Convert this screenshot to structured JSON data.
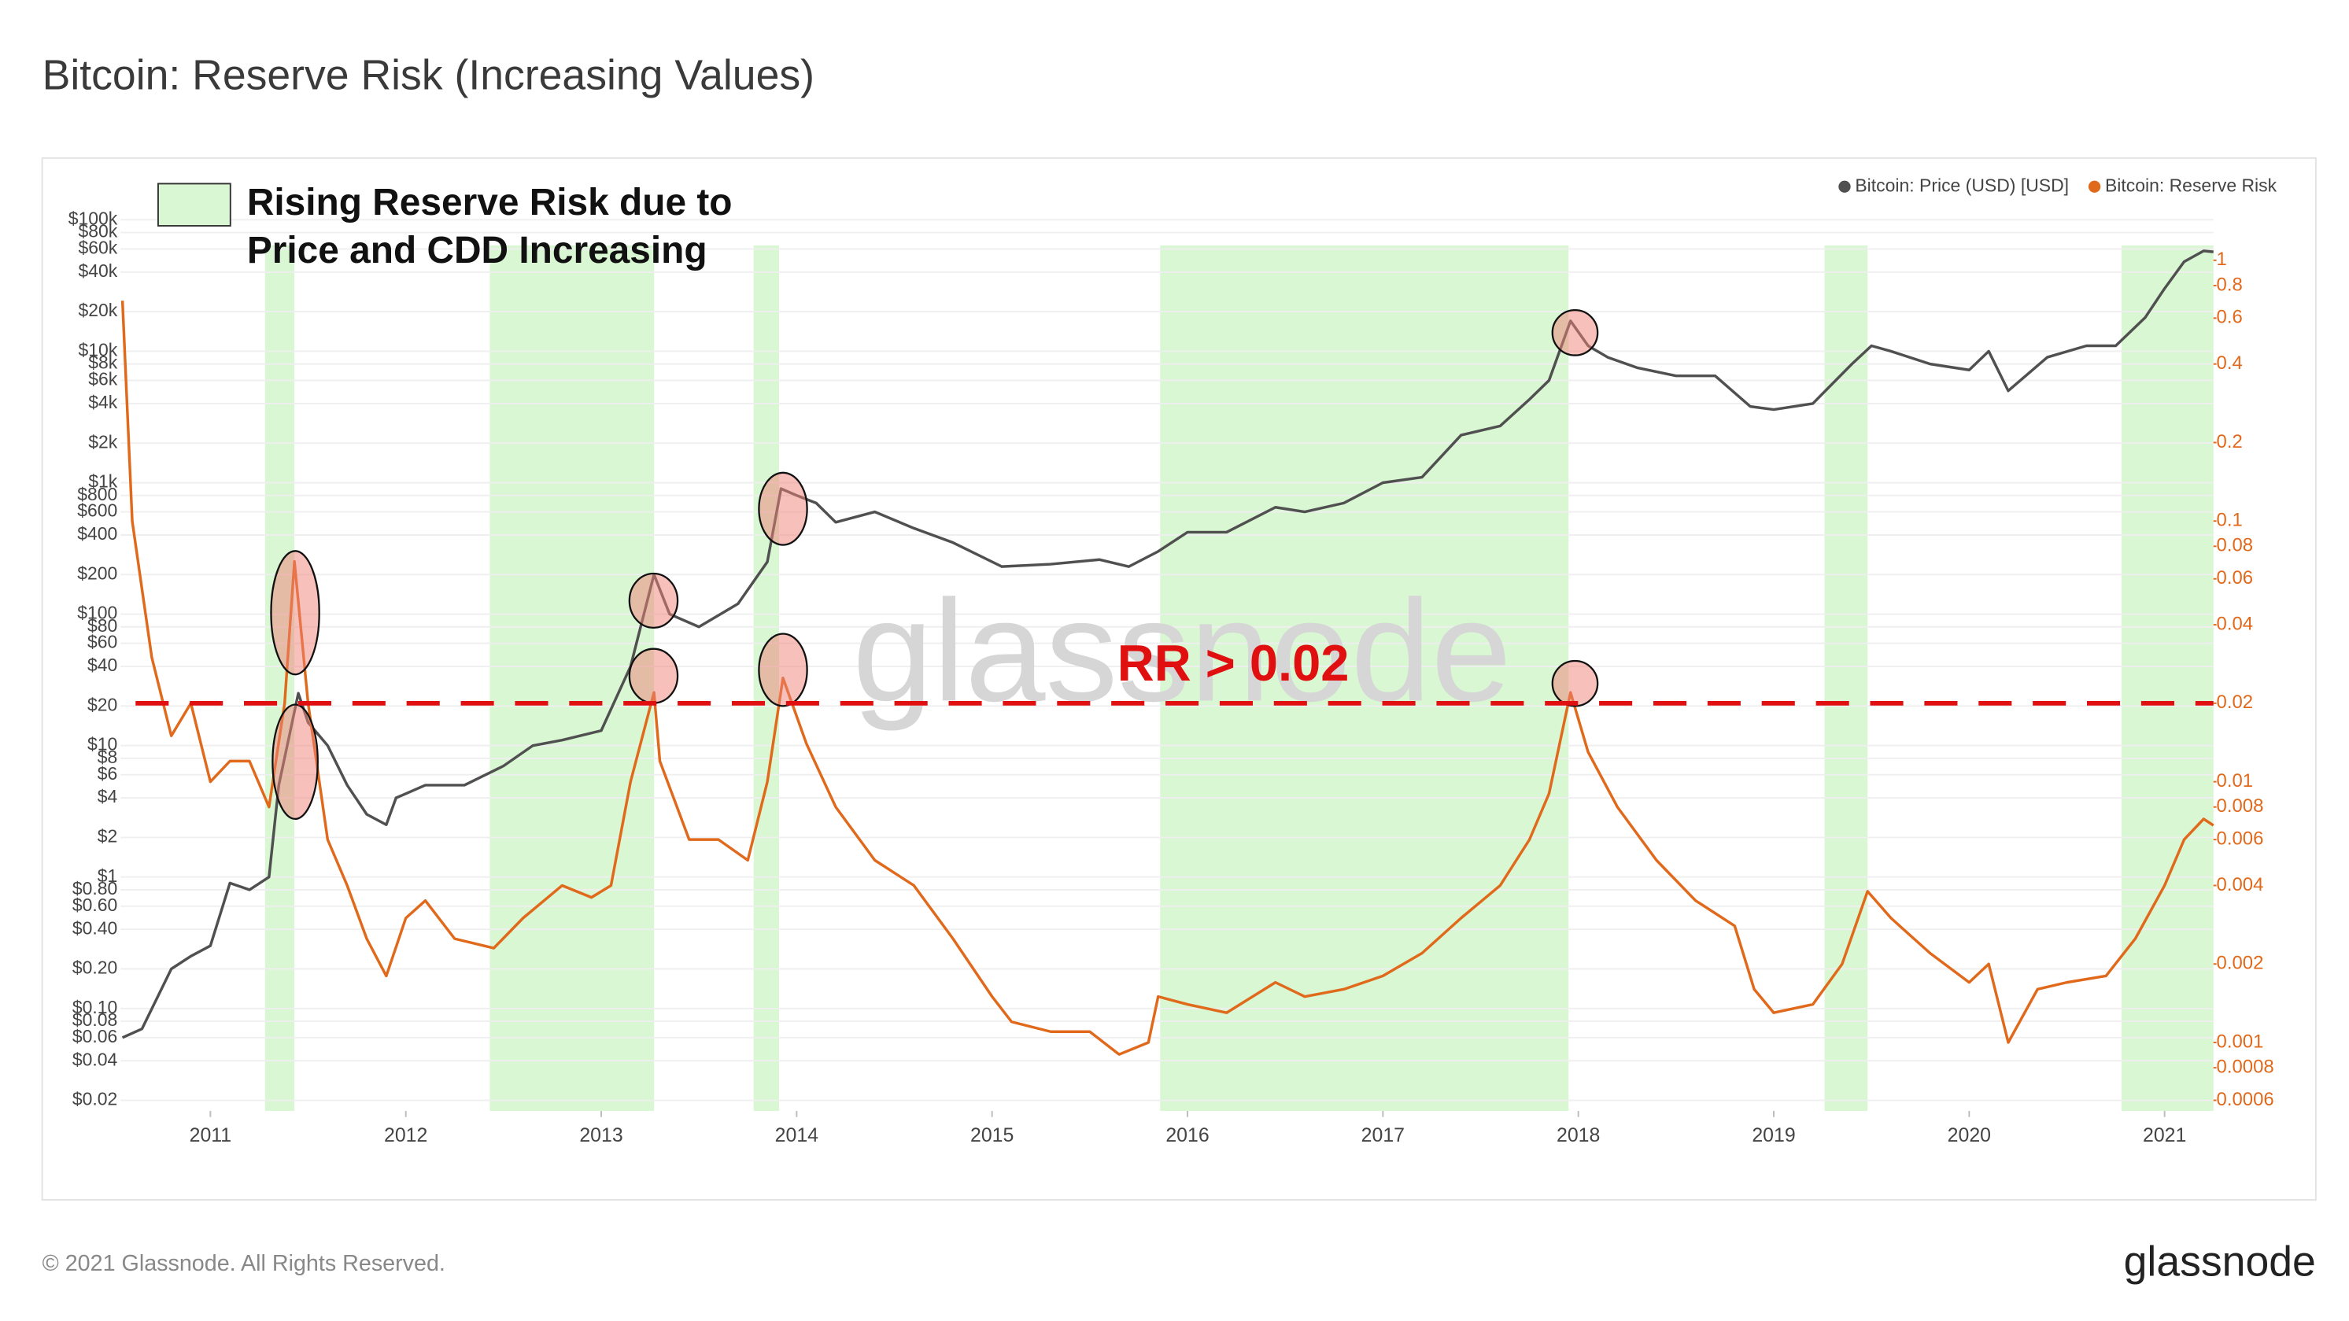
{
  "chart_data": {
    "type": "line",
    "title": "Bitcoin: Reserve Risk (Increasing Values)",
    "annotation": [
      "Rising Reserve Risk due to",
      "Price and CDD Increasing"
    ],
    "threshold": {
      "value": 0.02,
      "label": "RR > 0.02"
    },
    "watermark": "glassnode",
    "footer": "© 2021 Glassnode. All Rights Reserved.",
    "logo": "glassnode",
    "log_scale": true,
    "grid": true,
    "legend_position": "top-right",
    "shade_color": "#d8f7d2",
    "shaded_ranges": [
      [
        2011.28,
        2011.43
      ],
      [
        2012.43,
        2013.27
      ],
      [
        2013.78,
        2013.91
      ],
      [
        2015.86,
        2017.95
      ],
      [
        2019.26,
        2019.48
      ],
      [
        2020.78,
        2021.25
      ]
    ],
    "xlim": [
      2010.54,
      2021.25
    ],
    "xticks": [
      2011,
      2012,
      2013,
      2014,
      2015,
      2016,
      2017,
      2018,
      2019,
      2020,
      2021
    ],
    "ylim": [
      0.0166,
      100000
    ],
    "yticks": [
      {
        "value": 0.02,
        "label": "$0.02"
      },
      {
        "value": 0.04,
        "label": "$0.04"
      },
      {
        "value": 0.06,
        "label": "$0.06"
      },
      {
        "value": 0.08,
        "label": "$0.08"
      },
      {
        "value": 0.1,
        "label": "$0.10"
      },
      {
        "value": 0.2,
        "label": "$0.20"
      },
      {
        "value": 0.4,
        "label": "$0.40"
      },
      {
        "value": 0.6,
        "label": "$0.60"
      },
      {
        "value": 0.8,
        "label": "$0.80"
      },
      {
        "value": 1,
        "label": "$1"
      },
      {
        "value": 2,
        "label": "$2"
      },
      {
        "value": 4,
        "label": "$4"
      },
      {
        "value": 6,
        "label": "$6"
      },
      {
        "value": 8,
        "label": "$8"
      },
      {
        "value": 10,
        "label": "$10"
      },
      {
        "value": 20,
        "label": "$20"
      },
      {
        "value": 40,
        "label": "$40"
      },
      {
        "value": 60,
        "label": "$60"
      },
      {
        "value": 80,
        "label": "$80"
      },
      {
        "value": 100,
        "label": "$100"
      },
      {
        "value": 200,
        "label": "$200"
      },
      {
        "value": 400,
        "label": "$400"
      },
      {
        "value": 600,
        "label": "$600"
      },
      {
        "value": 800,
        "label": "$800"
      },
      {
        "value": 1000,
        "label": "$1k"
      },
      {
        "value": 2000,
        "label": "$2k"
      },
      {
        "value": 4000,
        "label": "$4k"
      },
      {
        "value": 6000,
        "label": "$6k"
      },
      {
        "value": 8000,
        "label": "$8k"
      },
      {
        "value": 10000,
        "label": "$10k"
      },
      {
        "value": 20000,
        "label": "$20k"
      },
      {
        "value": 40000,
        "label": "$40k"
      },
      {
        "value": 60000,
        "label": "$60k"
      },
      {
        "value": 80000,
        "label": "$80k"
      },
      {
        "value": 100000,
        "label": "$100k"
      }
    ],
    "y2lim": [
      0.000546,
      1.43
    ],
    "y2ticks": [
      0.0006,
      0.0008,
      0.001,
      0.002,
      0.004,
      0.006,
      0.008,
      0.01,
      0.02,
      0.04,
      0.06,
      0.08,
      0.1,
      0.2,
      0.4,
      0.6,
      0.8,
      1
    ],
    "series": [
      {
        "name": "Bitcoin: Price (USD) [USD]",
        "color": "#505050",
        "x": [
          2010.55,
          2010.65,
          2010.8,
          2010.9,
          2011.0,
          2011.1,
          2011.2,
          2011.3,
          2011.35,
          2011.45,
          2011.5,
          2011.6,
          2011.7,
          2011.8,
          2011.9,
          2011.95,
          2012.1,
          2012.3,
          2012.5,
          2012.65,
          2012.8,
          2013.0,
          2013.15,
          2013.27,
          2013.35,
          2013.5,
          2013.7,
          2013.85,
          2013.92,
          2014.0,
          2014.1,
          2014.2,
          2014.4,
          2014.6,
          2014.8,
          2015.05,
          2015.3,
          2015.55,
          2015.7,
          2015.85,
          2016.0,
          2016.2,
          2016.45,
          2016.6,
          2016.8,
          2017.0,
          2017.2,
          2017.4,
          2017.6,
          2017.75,
          2017.85,
          2017.96,
          2018.05,
          2018.15,
          2018.3,
          2018.5,
          2018.7,
          2018.88,
          2019.0,
          2019.2,
          2019.4,
          2019.5,
          2019.6,
          2019.8,
          2020.0,
          2020.1,
          2020.2,
          2020.4,
          2020.6,
          2020.75,
          2020.9,
          2021.0,
          2021.1,
          2021.2,
          2021.25
        ],
        "values": [
          0.06,
          0.07,
          0.2,
          0.25,
          0.3,
          0.9,
          0.8,
          1,
          5,
          25,
          15,
          10,
          5,
          3,
          2.5,
          4,
          5,
          5,
          7,
          10,
          11,
          13,
          40,
          200,
          100,
          80,
          120,
          250,
          900,
          800,
          700,
          500,
          600,
          450,
          350,
          230,
          240,
          260,
          230,
          300,
          420,
          420,
          650,
          600,
          700,
          1000,
          1100,
          2300,
          2700,
          4300,
          6000,
          17000,
          11000,
          9000,
          7500,
          6500,
          6500,
          3800,
          3600,
          4000,
          8000,
          11000,
          10000,
          8000,
          7200,
          10000,
          5000,
          9000,
          11000,
          11000,
          18000,
          30000,
          48000,
          58000,
          57000
        ]
      },
      {
        "name": "Bitcoin: Reserve Risk",
        "color": "#e0691b",
        "axis": "y2",
        "x": [
          2010.55,
          2010.6,
          2010.7,
          2010.8,
          2010.9,
          2011.0,
          2011.1,
          2011.2,
          2011.3,
          2011.38,
          2011.43,
          2011.5,
          2011.6,
          2011.7,
          2011.8,
          2011.9,
          2012.0,
          2012.1,
          2012.25,
          2012.45,
          2012.6,
          2012.8,
          2012.95,
          2013.05,
          2013.15,
          2013.27,
          2013.3,
          2013.45,
          2013.6,
          2013.75,
          2013.85,
          2013.93,
          2014.05,
          2014.2,
          2014.4,
          2014.6,
          2014.8,
          2015.0,
          2015.1,
          2015.3,
          2015.5,
          2015.65,
          2015.8,
          2015.85,
          2016.0,
          2016.2,
          2016.45,
          2016.6,
          2016.8,
          2017.0,
          2017.2,
          2017.4,
          2017.6,
          2017.75,
          2017.85,
          2017.96,
          2018.05,
          2018.2,
          2018.4,
          2018.6,
          2018.8,
          2018.9,
          2019.0,
          2019.2,
          2019.35,
          2019.48,
          2019.6,
          2019.8,
          2020.0,
          2020.1,
          2020.2,
          2020.35,
          2020.5,
          2020.7,
          2020.85,
          2021.0,
          2021.1,
          2021.2,
          2021.25
        ],
        "values": [
          0.7,
          0.1,
          0.03,
          0.015,
          0.02,
          0.01,
          0.012,
          0.012,
          0.008,
          0.02,
          0.07,
          0.02,
          0.006,
          0.004,
          0.0025,
          0.0018,
          0.003,
          0.0035,
          0.0025,
          0.0023,
          0.003,
          0.004,
          0.0036,
          0.004,
          0.01,
          0.022,
          0.012,
          0.006,
          0.006,
          0.005,
          0.01,
          0.025,
          0.014,
          0.008,
          0.005,
          0.004,
          0.0025,
          0.0015,
          0.0012,
          0.0011,
          0.0011,
          0.0009,
          0.001,
          0.0015,
          0.0014,
          0.0013,
          0.0017,
          0.0015,
          0.0016,
          0.0018,
          0.0022,
          0.003,
          0.004,
          0.006,
          0.009,
          0.022,
          0.013,
          0.008,
          0.005,
          0.0035,
          0.0028,
          0.0016,
          0.0013,
          0.0014,
          0.002,
          0.0038,
          0.003,
          0.0022,
          0.0017,
          0.002,
          0.001,
          0.0016,
          0.0017,
          0.0018,
          0.0025,
          0.004,
          0.006,
          0.0072,
          0.0068
        ]
      }
    ]
  }
}
